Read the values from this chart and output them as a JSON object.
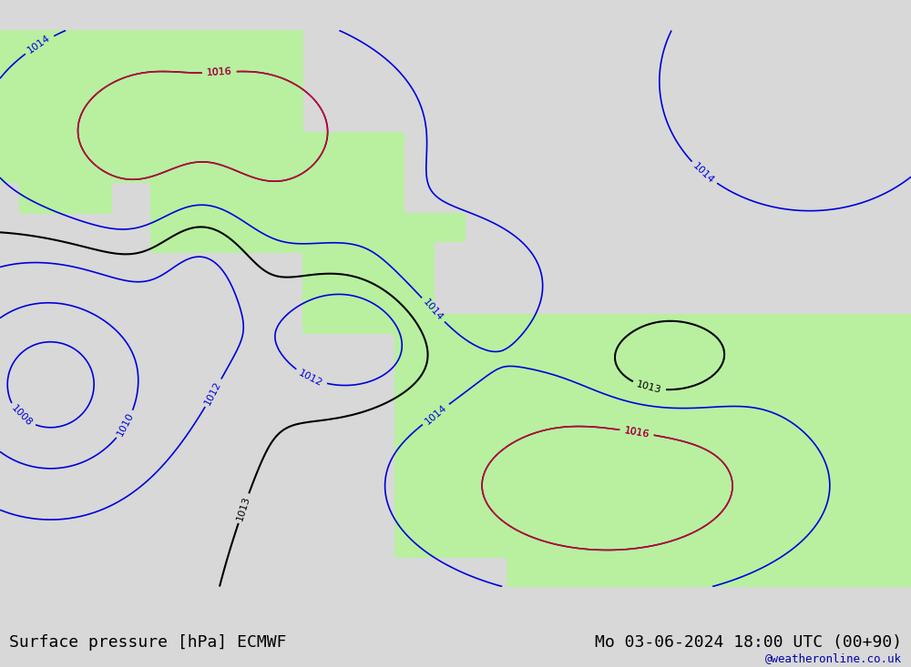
{
  "title_left": "Surface pressure [hPa] ECMWF",
  "title_right": "Mo 03-06-2024 18:00 UTC (00+90)",
  "watermark": "@weatheronline.co.uk",
  "background_color": "#d8d8d8",
  "land_color": "#b8f0a0",
  "sea_color": "#e8e8e8",
  "bottom_bar_color": "#c8c8c8",
  "contour_black_color": "#000000",
  "contour_blue_color": "#0000dd",
  "contour_red_color": "#dd0000",
  "contour_orange_color": "#ff8800",
  "title_fontsize": 13,
  "watermark_fontsize": 9,
  "label_fontsize": 8,
  "fig_width": 10.0,
  "fig_height": 7.33
}
